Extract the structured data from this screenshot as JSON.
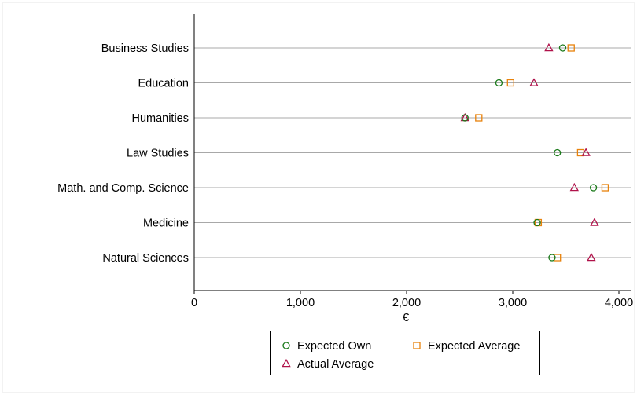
{
  "chart_data": {
    "type": "scatter",
    "title": "",
    "xlabel": "€",
    "ylabel": "",
    "xlim": [
      0,
      4100
    ],
    "xticks": [
      0,
      1000,
      2000,
      3000,
      4000
    ],
    "xtick_labels": [
      "0",
      "1,000",
      "2,000",
      "3,000",
      "4,000"
    ],
    "categories": [
      "Business Studies",
      "Education",
      "Humanities",
      "Law Studies",
      "Math. and Comp. Science",
      "Medicine",
      "Natural Sciences"
    ],
    "series": [
      {
        "name": "Expected Own",
        "marker": "circle",
        "color": "#1a7a1a",
        "values": [
          3470,
          2870,
          2550,
          3420,
          3760,
          3230,
          3370
        ]
      },
      {
        "name": "Expected Average",
        "marker": "square",
        "color": "#e8820c",
        "values": [
          3550,
          2980,
          2680,
          3640,
          3870,
          3240,
          3420
        ]
      },
      {
        "name": "Actual Average",
        "marker": "triangle",
        "color": "#b0124a",
        "values": [
          3340,
          3200,
          2550,
          3690,
          3580,
          3770,
          3740
        ]
      }
    ],
    "grid": "horizontal",
    "legend_position": "bottom"
  }
}
